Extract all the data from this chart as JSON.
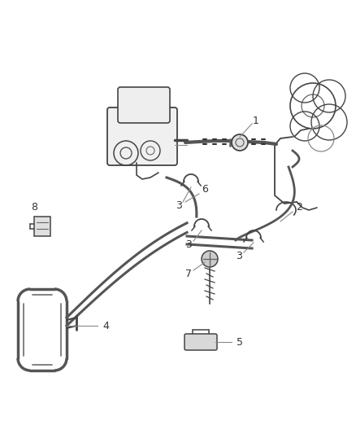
{
  "background_color": "#ffffff",
  "line_color": "#444444",
  "label_color": "#444444",
  "figsize": [
    4.38,
    5.33
  ],
  "dpi": 100,
  "xlim": [
    0,
    438
  ],
  "ylim": [
    533,
    0
  ]
}
